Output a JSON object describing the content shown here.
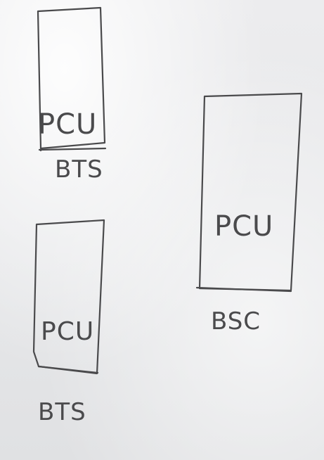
{
  "diagram": {
    "nodes": [
      {
        "id": "bts-top",
        "inner_label": "PCU",
        "caption": "BTS"
      },
      {
        "id": "bts-bottom",
        "inner_label": "PCU",
        "caption": "BTS"
      },
      {
        "id": "bsc",
        "inner_label": "PCU",
        "caption": "BSC"
      }
    ],
    "colors": {
      "ink": "#4a4a4c",
      "board": "#e6e7e9"
    }
  }
}
